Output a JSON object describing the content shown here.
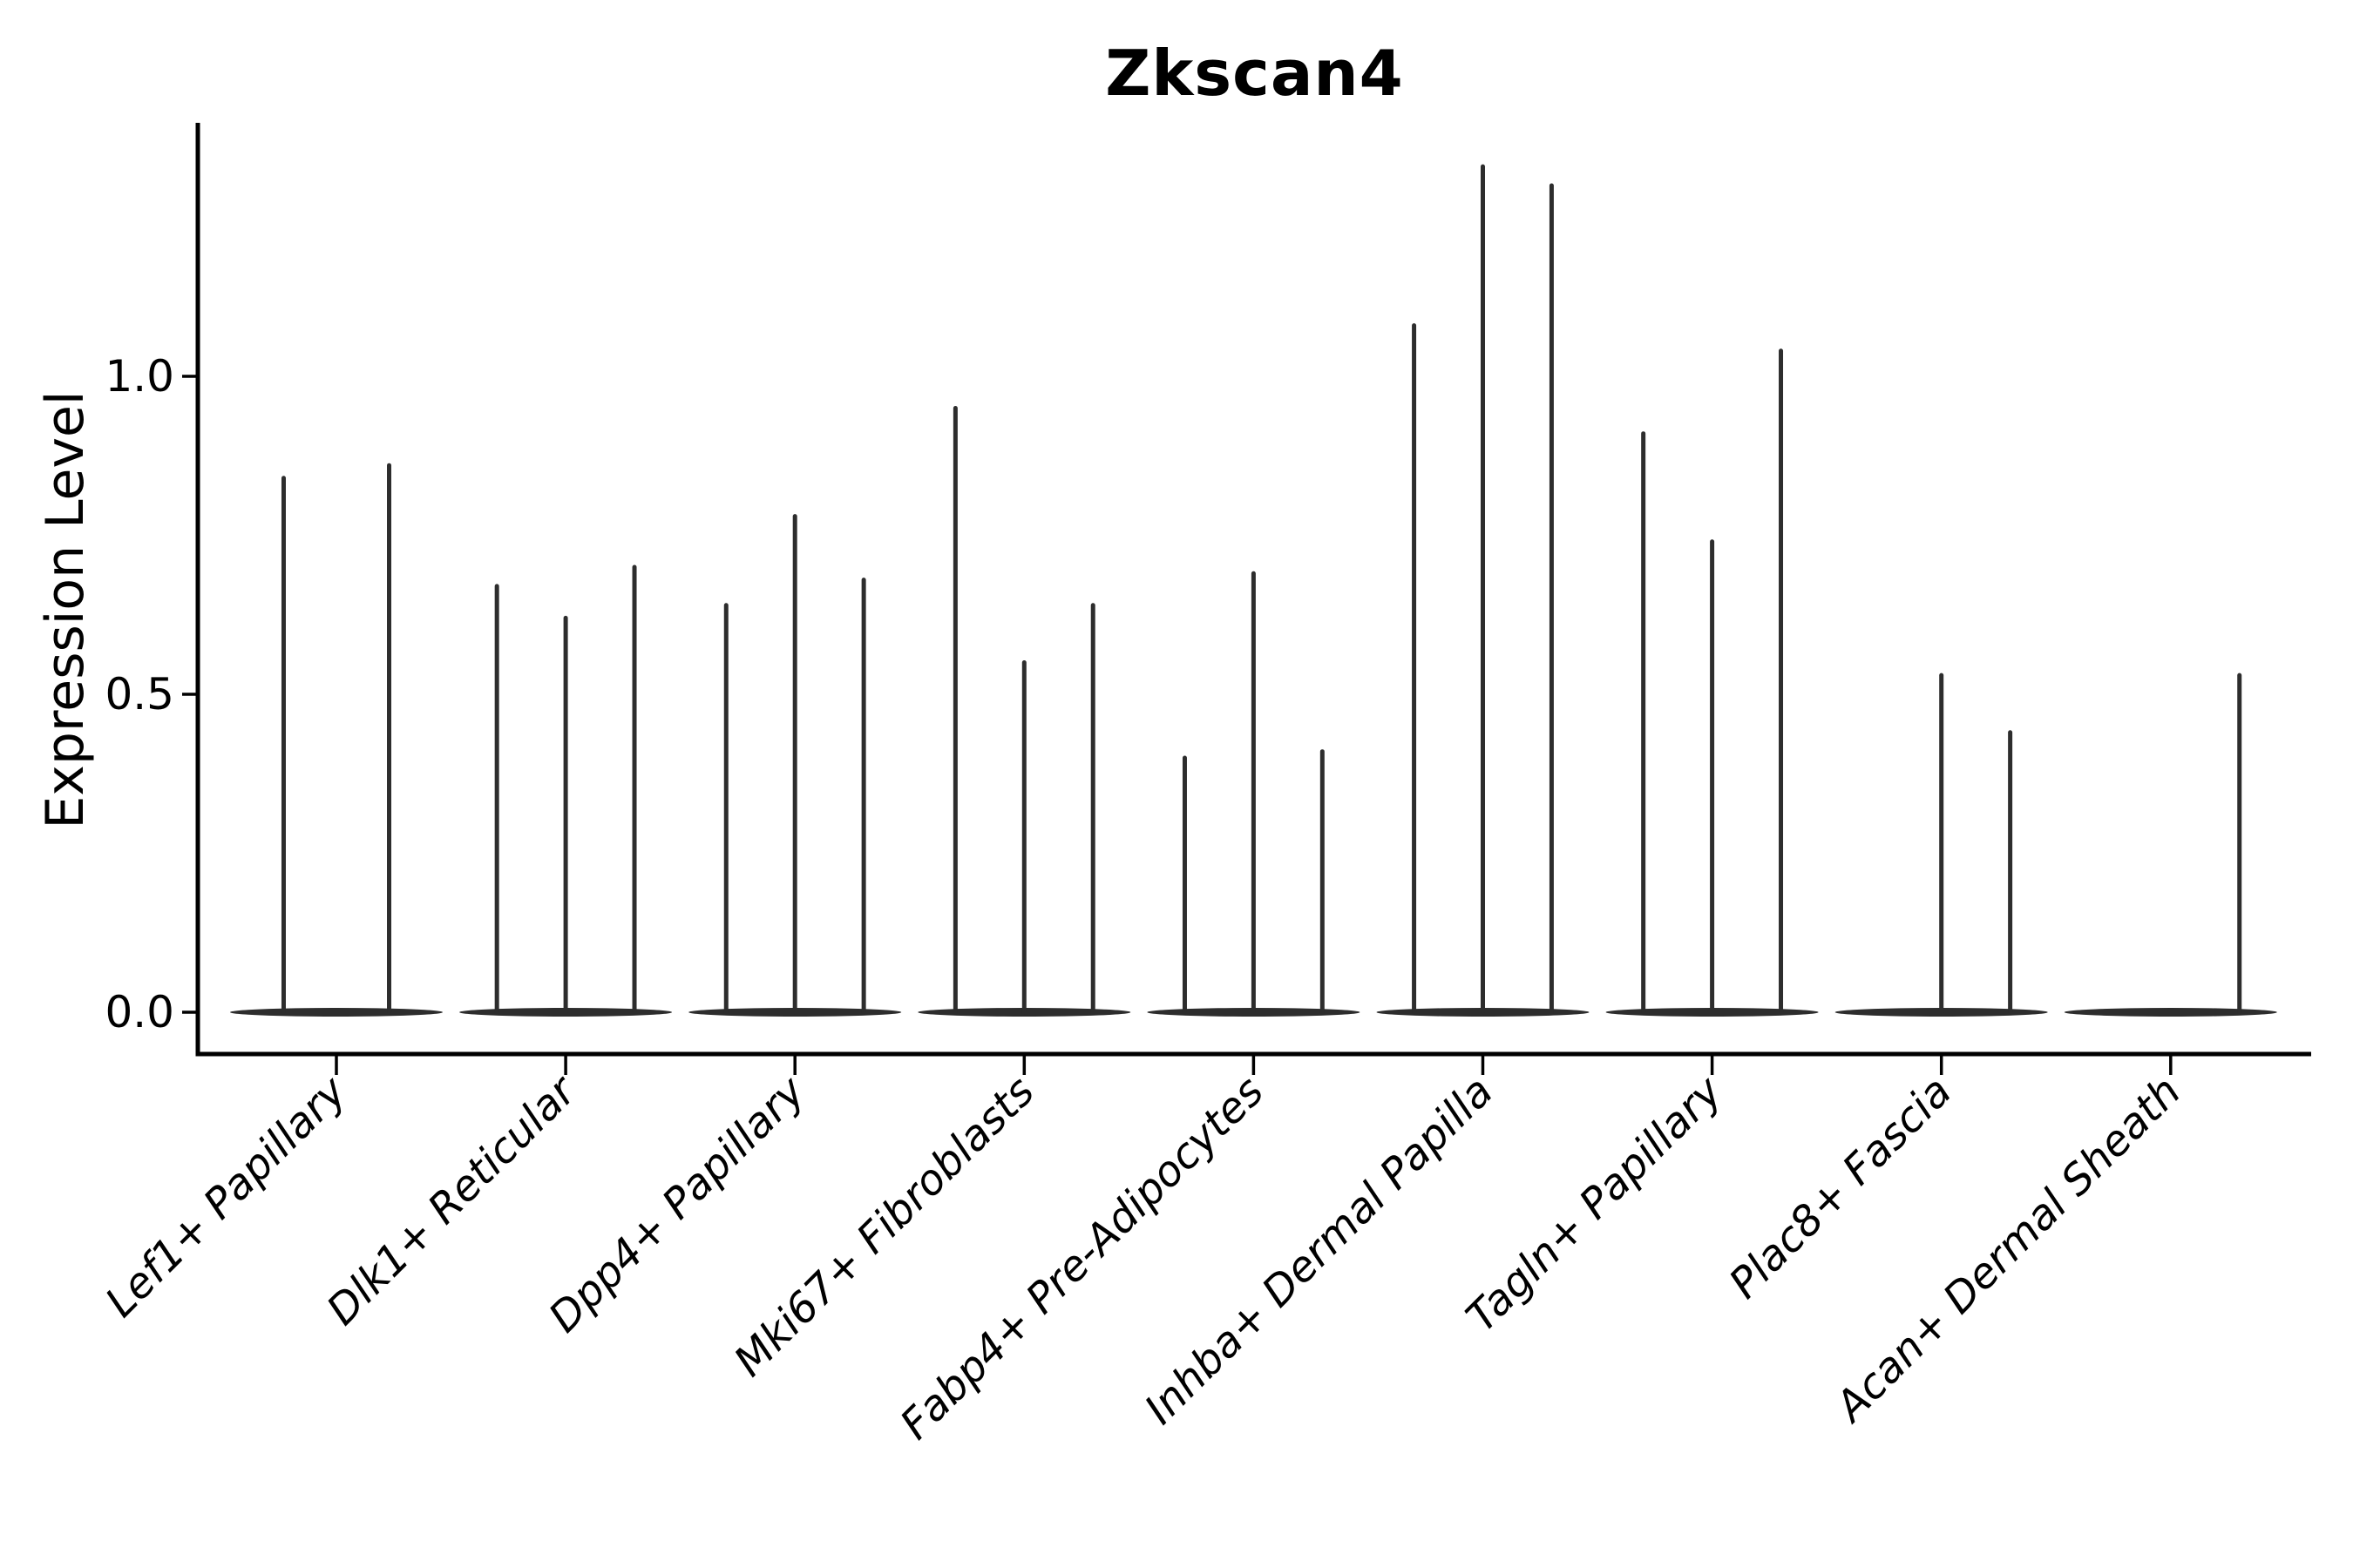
{
  "figure": {
    "title": "Zkscan4",
    "ylabel": "Expression Level"
  },
  "chart_data": {
    "type": "violin",
    "title": "Zkscan4",
    "xlabel": "",
    "ylabel": "Expression Level",
    "ylim": [
      -0.07,
      1.4
    ],
    "yticks": [
      0.0,
      0.5,
      1.0
    ],
    "ytick_labels": [
      "0.0",
      "0.5",
      "1.0"
    ],
    "x_rotation": 45,
    "grid": false,
    "legend": false,
    "violin_color": "#2d2d2d",
    "axis_color": "#000000",
    "note": "Sparse single-cell expression violins: each category holds 1-3 very thin violins whose mass sits at 0 with a narrow spike rising to the max value (peak). pos = offset from category center in category-width fractions.",
    "categories": [
      "Lef1+ Papillary",
      "Dlk1+ Reticular",
      "Dpp4+ Papillary",
      "Mki67+ Fibroblasts",
      "Fabp4+ Pre-Adipocytes",
      "Inhba+ Dermal Papilla",
      "Tagln+ Papillary",
      "Plac8+ Fascia",
      "Acan+ Dermal Sheath"
    ],
    "groups": [
      {
        "label": "Lef1+ Papillary",
        "violins": [
          {
            "pos": -0.23,
            "peak": 0.84
          },
          {
            "pos": 0.23,
            "peak": 0.86
          }
        ]
      },
      {
        "label": "Dlk1+ Reticular",
        "violins": [
          {
            "pos": -0.3,
            "peak": 0.67
          },
          {
            "pos": 0,
            "peak": 0.62
          },
          {
            "pos": 0.3,
            "peak": 0.7
          }
        ]
      },
      {
        "label": "Dpp4+ Papillary",
        "violins": [
          {
            "pos": -0.3,
            "peak": 0.64
          },
          {
            "pos": 0,
            "peak": 0.78
          },
          {
            "pos": 0.3,
            "peak": 0.68
          }
        ]
      },
      {
        "label": "Mki67+ Fibroblasts",
        "violins": [
          {
            "pos": -0.3,
            "peak": 0.95
          },
          {
            "pos": 0,
            "peak": 0.55
          },
          {
            "pos": 0.3,
            "peak": 0.64
          }
        ]
      },
      {
        "label": "Fabp4+ Pre-Adipocytes",
        "violins": [
          {
            "pos": -0.3,
            "peak": 0.4
          },
          {
            "pos": 0,
            "peak": 0.69
          },
          {
            "pos": 0.3,
            "peak": 0.41
          }
        ]
      },
      {
        "label": "Inhba+ Dermal Papilla",
        "violins": [
          {
            "pos": -0.3,
            "peak": 1.08
          },
          {
            "pos": 0,
            "peak": 1.33
          },
          {
            "pos": 0.3,
            "peak": 1.3
          }
        ]
      },
      {
        "label": "Tagln+ Papillary",
        "violins": [
          {
            "pos": -0.3,
            "peak": 0.91
          },
          {
            "pos": 0,
            "peak": 0.74
          },
          {
            "pos": 0.3,
            "peak": 1.04
          }
        ]
      },
      {
        "label": "Plac8+ Fascia",
        "violins": [
          {
            "pos": 0,
            "peak": 0.53
          },
          {
            "pos": 0.3,
            "peak": 0.44
          }
        ]
      },
      {
        "label": "Acan+ Dermal Sheath",
        "violins": [
          {
            "pos": 0.3,
            "peak": 0.53
          }
        ]
      }
    ]
  }
}
